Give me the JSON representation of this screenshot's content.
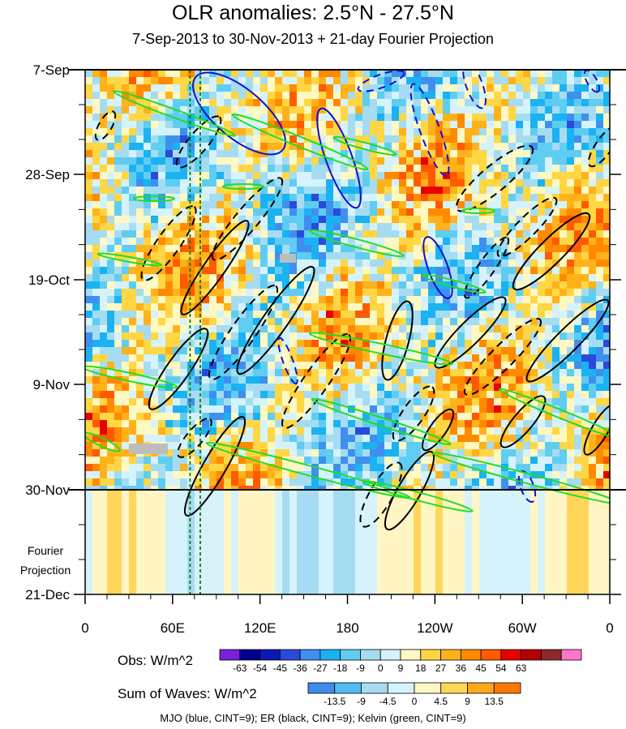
{
  "chart_data": {
    "type": "heatmap",
    "title": "OLR anomalies: 2.5°N - 27.5°N",
    "subtitle": "7-Sep-2013 to 30-Nov-2013 + 21-day Fourier Projection",
    "y_tick_labels": [
      "7-Sep",
      "28-Sep",
      "19-Oct",
      "9-Nov",
      "30-Nov",
      "21-Dec"
    ],
    "x_tick_labels": [
      "0",
      "60E",
      "120E",
      "180",
      "120W",
      "60W",
      "0"
    ],
    "x_range_deg_east": [
      0,
      360
    ],
    "time_range": [
      "7-Sep-2013",
      "21-Dec-2013"
    ],
    "projection_start": "30-Nov",
    "projection_label": [
      "Fourier",
      "Projection"
    ],
    "marker_longitudes_deg": [
      72,
      79
    ],
    "obs_colorbar": {
      "label": "Obs: W/m^2",
      "levels": [
        -63,
        -54,
        -45,
        -36,
        -27,
        -18,
        -9,
        0,
        9,
        18,
        27,
        36,
        45,
        54,
        63
      ],
      "colors": [
        "#7a1fdc",
        "#00008c",
        "#0a1ab4",
        "#2a4bd9",
        "#3f8ff0",
        "#1bb2f2",
        "#5fcdf2",
        "#a6dcf2",
        "#d6f2fb",
        "#fff8c2",
        "#ffd644",
        "#ffb21a",
        "#ff8a00",
        "#ff5a00",
        "#e60000",
        "#b50000",
        "#8c2a2a",
        "#ff77cc"
      ]
    },
    "wave_colorbar": {
      "label": "Sum of Waves: W/m^2",
      "levels": [
        -13.5,
        -9,
        -4.5,
        0,
        4.5,
        9,
        13.5
      ],
      "colors": [
        "#3b8df0",
        "#4fbdf4",
        "#a6dcf2",
        "#d6f2fb",
        "#fff6c4",
        "#ffd65a",
        "#ffa61a",
        "#ff7a00"
      ]
    },
    "contours": [
      {
        "name": "MJO",
        "color": "blue",
        "cint": 9
      },
      {
        "name": "ER",
        "color": "black",
        "cint": 9
      },
      {
        "name": "Kelvin",
        "color": "green",
        "cint": 9
      }
    ]
  },
  "legend_note": "MJO (blue, CINT=9); ER (black, CINT=9); Kelvin (green, CINT=9)"
}
